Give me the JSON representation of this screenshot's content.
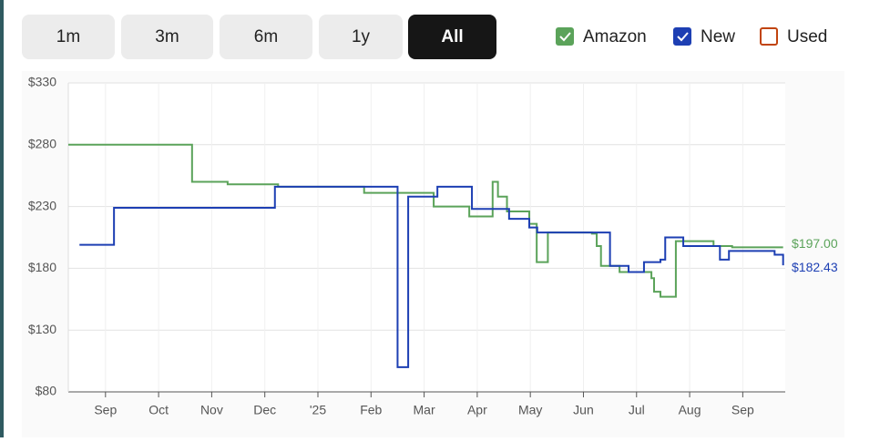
{
  "ranges": [
    "1m",
    "3m",
    "6m",
    "1y",
    "All"
  ],
  "active_range": 4,
  "chart_data": {
    "type": "line",
    "step": true,
    "xlim": [
      -0.7,
      12.8
    ],
    "xticks": [
      {
        "value": 0,
        "label": "Sep"
      },
      {
        "value": 1,
        "label": "Oct"
      },
      {
        "value": 2,
        "label": "Nov"
      },
      {
        "value": 3,
        "label": "Dec"
      },
      {
        "value": 4,
        "label": "'25"
      },
      {
        "value": 5,
        "label": "Feb"
      },
      {
        "value": 6,
        "label": "Mar"
      },
      {
        "value": 7,
        "label": "Apr"
      },
      {
        "value": 8,
        "label": "May"
      },
      {
        "value": 9,
        "label": "Jun"
      },
      {
        "value": 10,
        "label": "Jul"
      },
      {
        "value": 11,
        "label": "Aug"
      },
      {
        "value": 12,
        "label": "Sep"
      }
    ],
    "ylim": [
      80,
      330
    ],
    "yticks": [
      {
        "value": 80,
        "label": "$80"
      },
      {
        "value": 130,
        "label": "$130"
      },
      {
        "value": 180,
        "label": "$180"
      },
      {
        "value": 230,
        "label": "$230"
      },
      {
        "value": 280,
        "label": "$280"
      },
      {
        "value": 330,
        "label": "$330"
      }
    ],
    "grid": true,
    "series": [
      {
        "name": "Amazon",
        "color": "#5ba35a",
        "checked": true,
        "end_label": "$197.00",
        "x": [
          -0.7,
          1.63,
          2.3,
          3.25,
          4.87,
          6.1,
          6.18,
          6.85,
          7.29,
          7.39,
          7.56,
          7.98,
          8.12,
          8.33,
          9.16,
          9.25,
          9.33,
          9.68,
          10.28,
          10.33,
          10.45,
          10.74,
          11.45,
          11.8,
          12.76
        ],
        "values": [
          280,
          250,
          248,
          246,
          241,
          241,
          230,
          222,
          250,
          238,
          226,
          216,
          185,
          209,
          208,
          198,
          182,
          177,
          172,
          161,
          157,
          202,
          198,
          197,
          197
        ]
      },
      {
        "name": "New",
        "color": "#1d3fb3",
        "checked": true,
        "end_label": "$182.43",
        "x": [
          -0.49,
          0.16,
          3.19,
          5.5,
          5.7,
          6.25,
          6.9,
          7.6,
          7.98,
          8.13,
          9.5,
          9.85,
          10.14,
          10.45,
          10.54,
          10.88,
          11.57,
          11.74,
          12.6,
          12.76
        ],
        "values": [
          199,
          229,
          246,
          100,
          238,
          246,
          228,
          220,
          213,
          209,
          182,
          177,
          185,
          187,
          205,
          198,
          187,
          194,
          191,
          182.43
        ]
      },
      {
        "name": "Used",
        "color": "#c1440e",
        "checked": false,
        "x": [],
        "values": []
      }
    ]
  }
}
